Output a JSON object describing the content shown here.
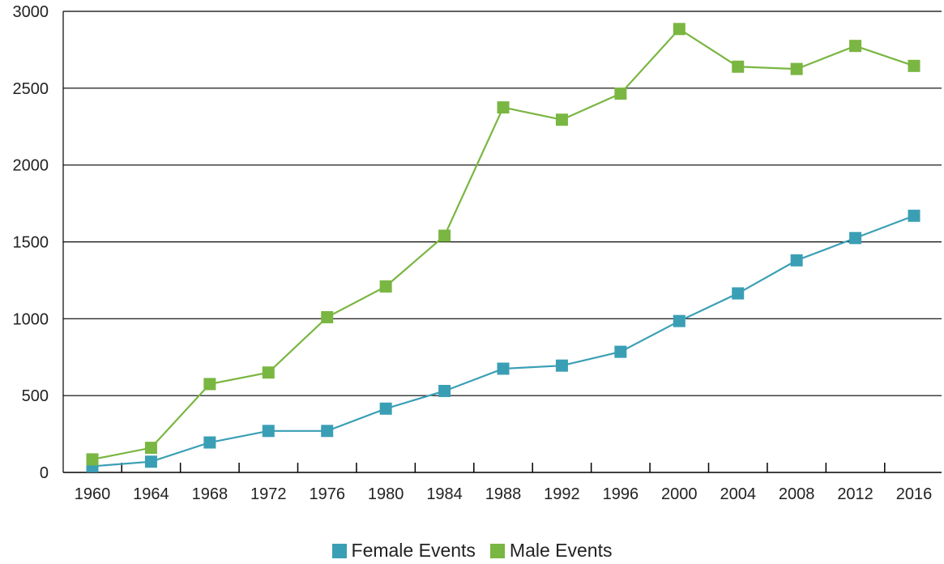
{
  "chart_data": {
    "type": "line",
    "x": [
      "1960",
      "1964",
      "1968",
      "1972",
      "1976",
      "1980",
      "1984",
      "1988",
      "1992",
      "1996",
      "2000",
      "2004",
      "2008",
      "2012",
      "2016"
    ],
    "y_ticks": [
      "0",
      "500",
      "1000",
      "1500",
      "2000",
      "2500",
      "3000"
    ],
    "ylim": [
      0,
      3000
    ],
    "grid": "horizontal",
    "legend_position": "bottom",
    "series": [
      {
        "name": "Female Events",
        "color": "#3a9fb5",
        "marker": "square",
        "values": [
          40,
          70,
          195,
          270,
          270,
          415,
          530,
          675,
          695,
          785,
          985,
          1165,
          1380,
          1525,
          1670
        ]
      },
      {
        "name": "Male Events",
        "color": "#7ab642",
        "marker": "square",
        "values": [
          85,
          160,
          575,
          650,
          1010,
          1210,
          1540,
          2375,
          2295,
          2465,
          2885,
          2640,
          2625,
          2775,
          2645
        ]
      }
    ]
  }
}
